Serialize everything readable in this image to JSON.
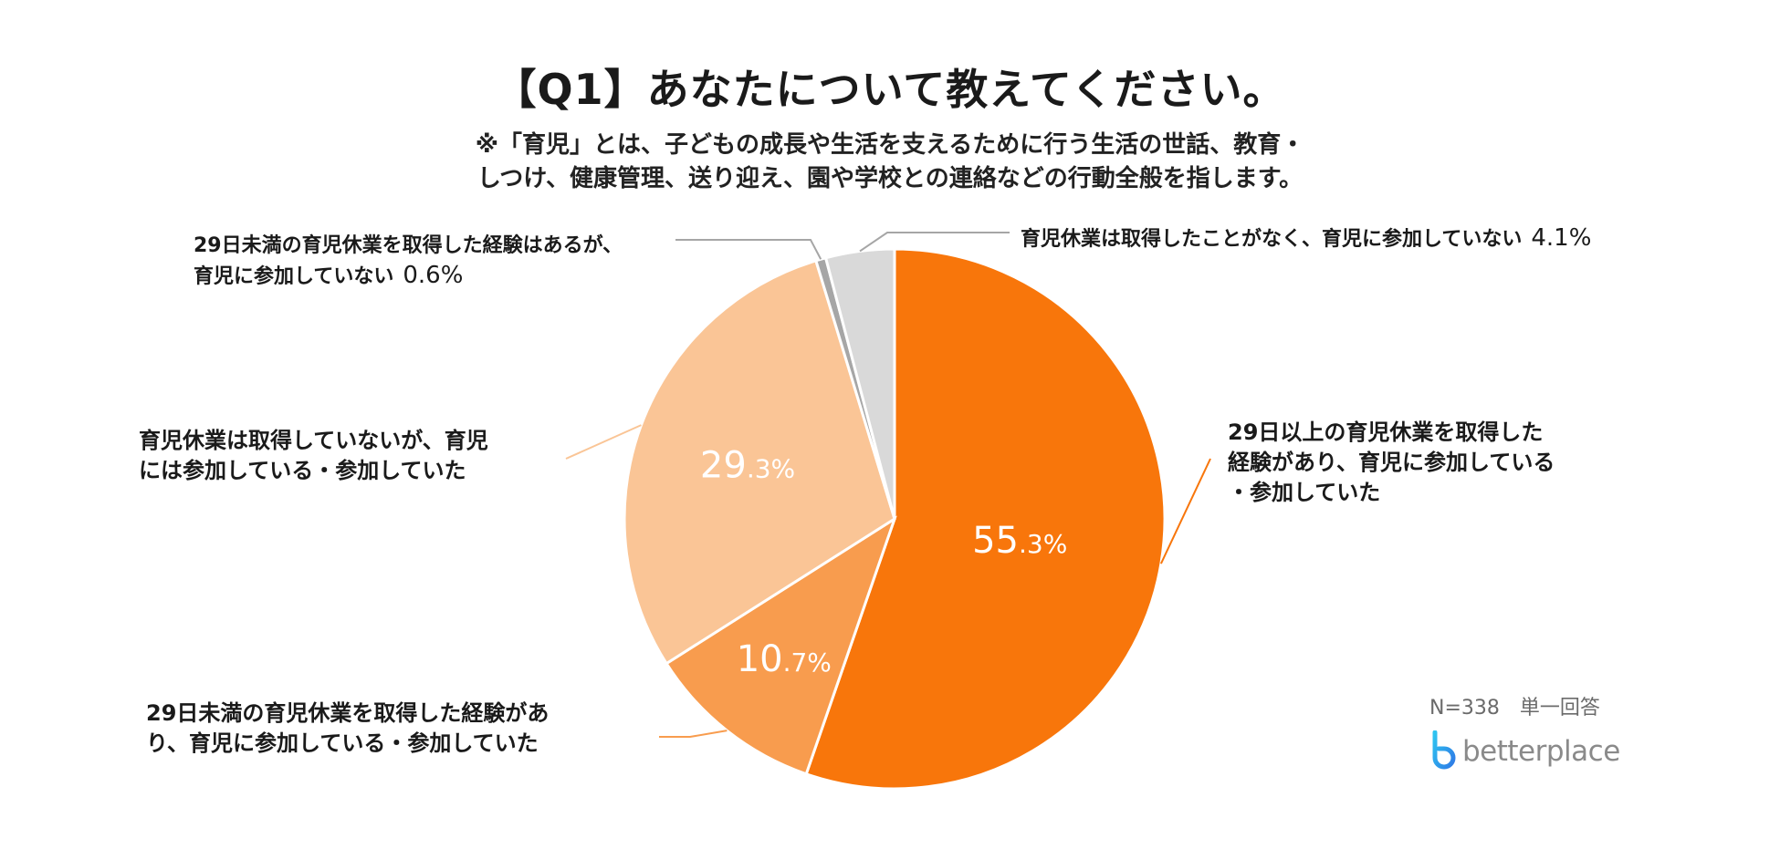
{
  "title": "【Q1】あなたについて教えてください。",
  "subtitle_line1": "※「育児」とは、子どもの成長や生活を支えるために行う生活の世話、教育・",
  "subtitle_line2": "しつけ、健康管理、送り迎え、園や学校との連絡などの行動全般を指します。",
  "note": "N=338　単一回答",
  "brand": "betterplace",
  "chart_data": {
    "type": "pie",
    "title": "【Q1】あなたについて教えてください。",
    "unit": "%",
    "start": "12 o'clock, clockwise",
    "slices": [
      {
        "label_lines": [
          "29日以上の育児休業を取得した",
          "経験があり、育児に参加している",
          "・参加していた"
        ],
        "value": 55.3,
        "value_int": "55",
        "value_dec": ".3%",
        "color": "#F8760B"
      },
      {
        "label_lines": [
          "29日未満の育児休業を取得した経験があ",
          "り、育児に参加している・参加していた"
        ],
        "value": 10.7,
        "value_int": "10",
        "value_dec": ".7%",
        "color": "#F89C4E"
      },
      {
        "label_lines": [
          "育児休業は取得していないが、育児",
          "には参加している・参加していた"
        ],
        "value": 29.3,
        "value_int": "29",
        "value_dec": ".3%",
        "color": "#FAC596"
      },
      {
        "label_lines": [
          "29日未満の育児休業を取得した経験はあるが、",
          "育児に参加していない"
        ],
        "value": 0.6,
        "value_text": "0.6%",
        "color": "#A6A6A6"
      },
      {
        "label_lines": [
          "育児休業は取得したことがなく、育児に参加していない"
        ],
        "value": 4.1,
        "value_text": "4.1%",
        "color": "#D9D9D9"
      }
    ]
  }
}
